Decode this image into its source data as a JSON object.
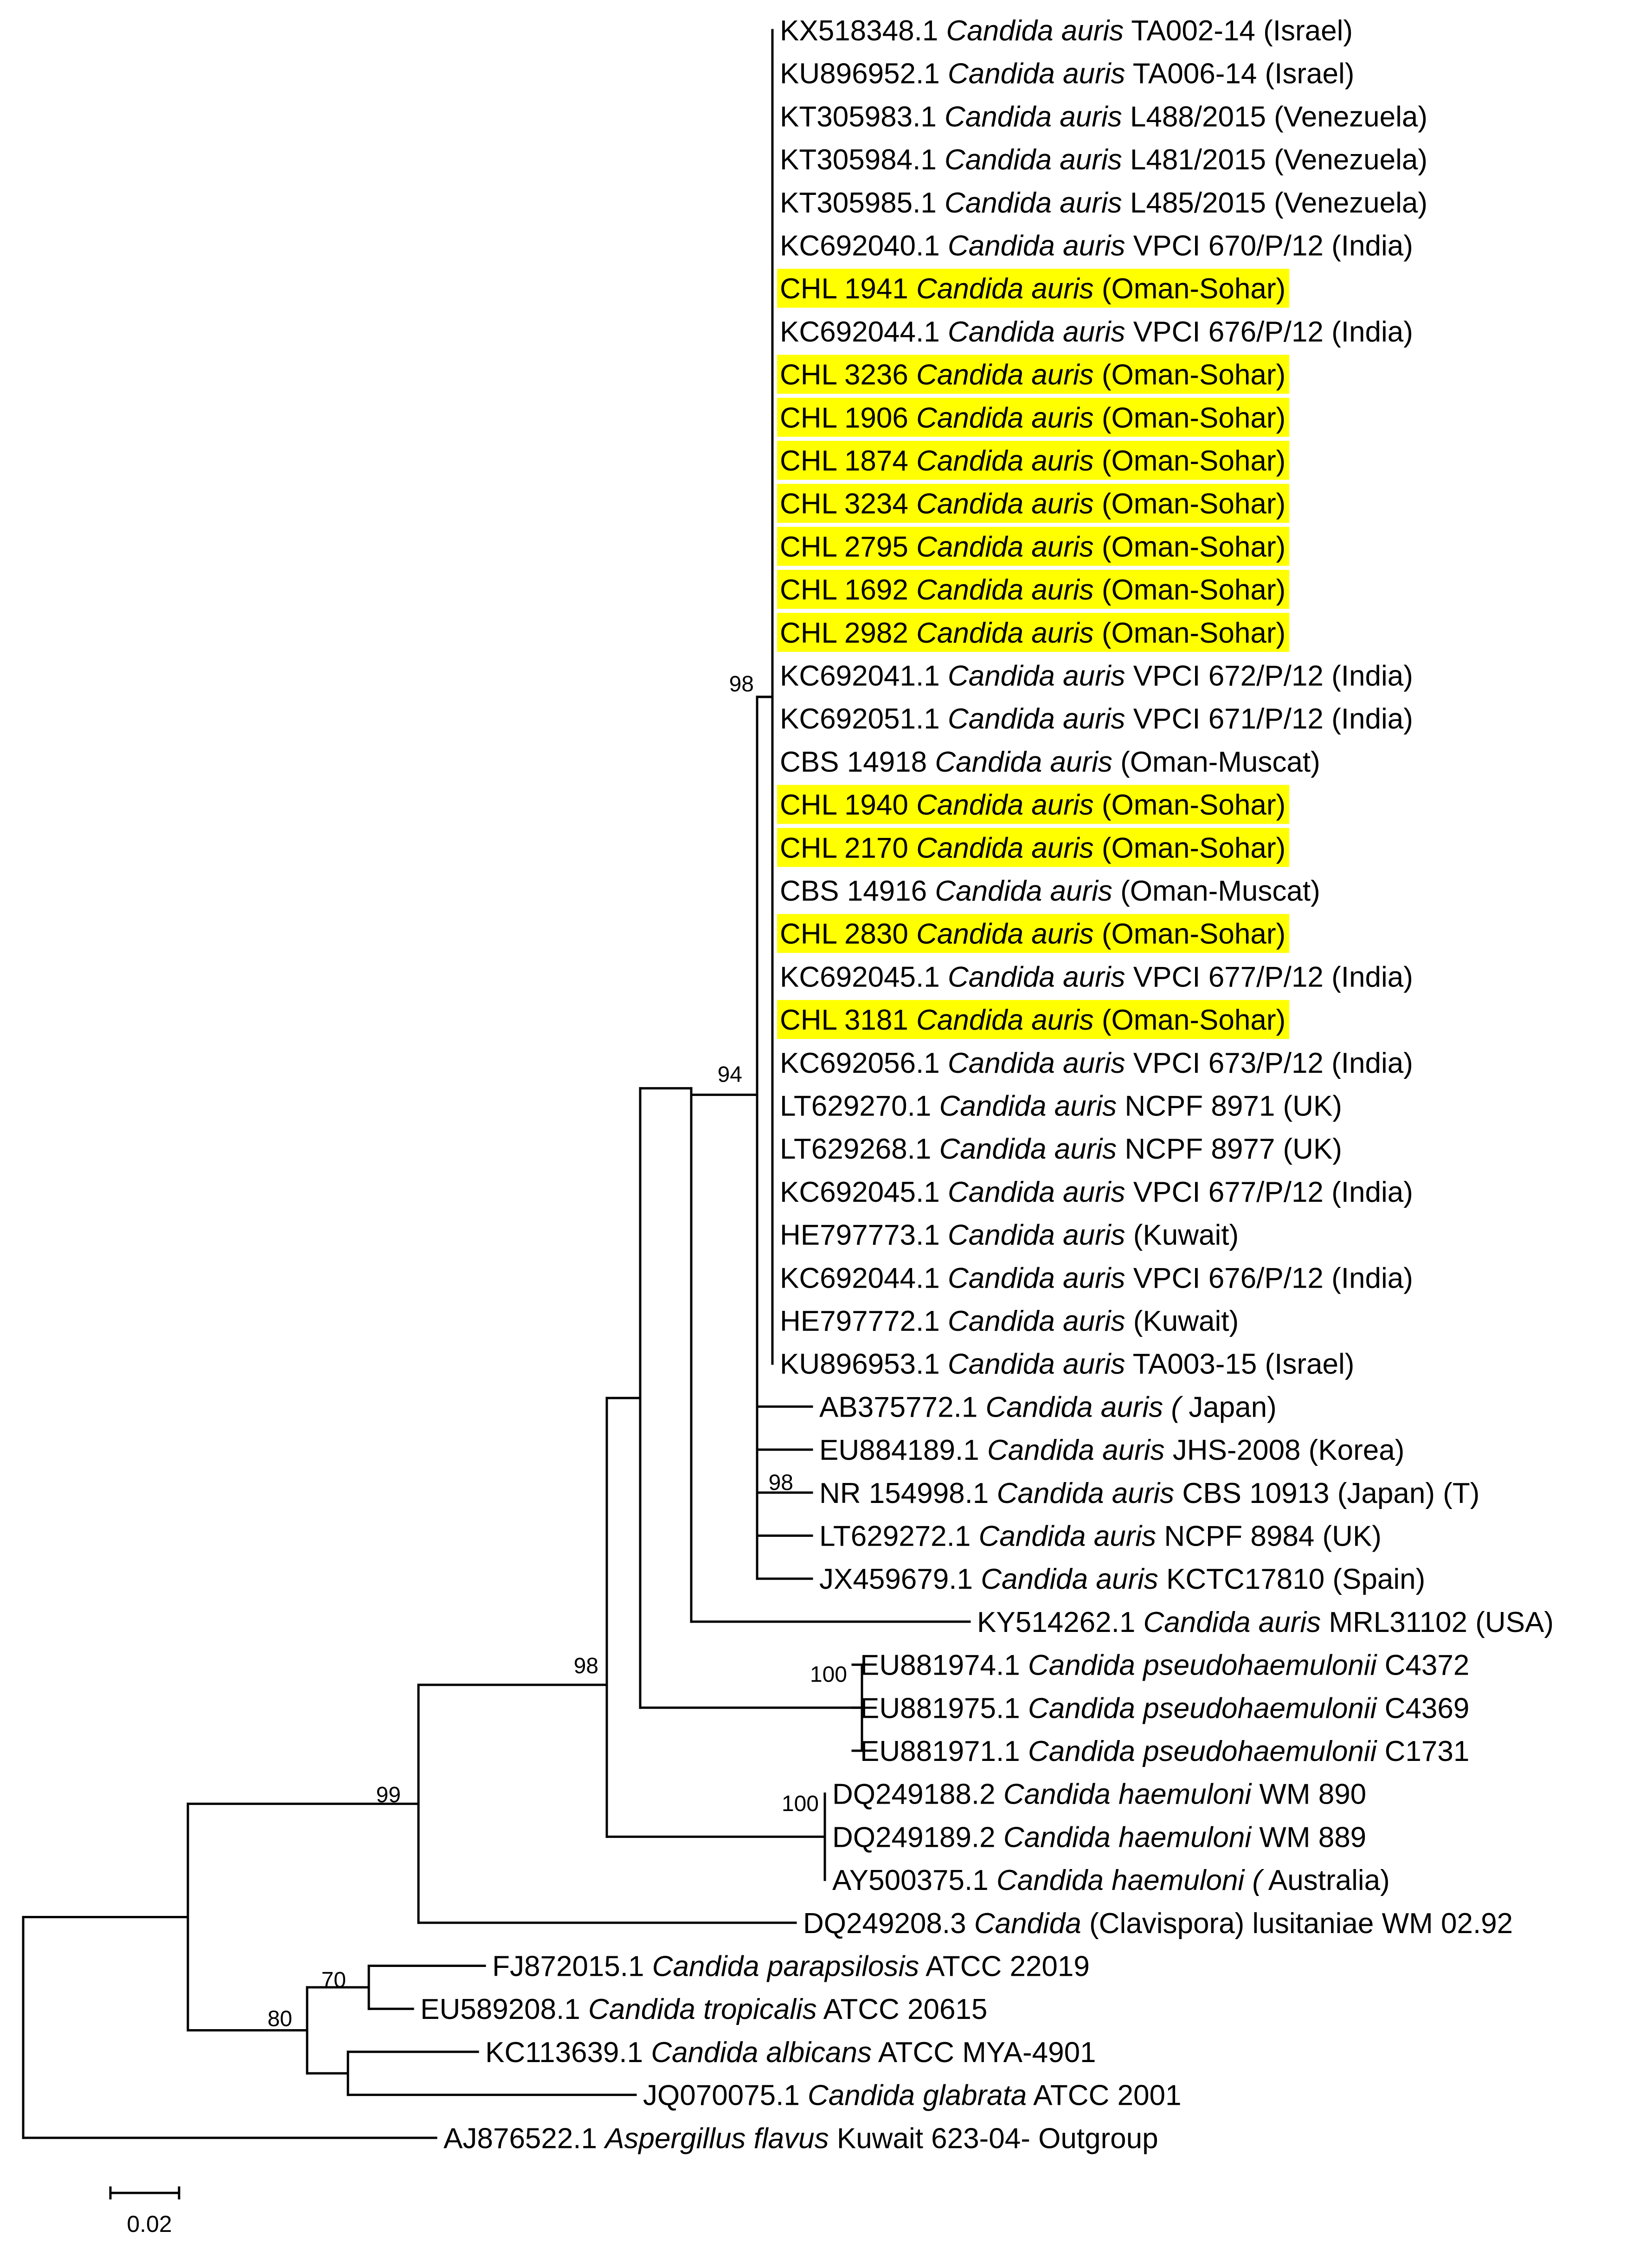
{
  "colors": {
    "highlight": "#ffff00",
    "line": "#000000"
  },
  "leaves": [
    {
      "id": "L0",
      "acc": "KX518348.1",
      "species": "Candida auris",
      "rest": "TA002-14 (Israel)",
      "hl": false
    },
    {
      "id": "L1",
      "acc": "KU896952.1",
      "species": "Candida auris",
      "rest": " TA006-14 (Israel)",
      "hl": false
    },
    {
      "id": "L2",
      "acc": "KT305983.1",
      "species": "Candida auris",
      "rest": "L488/2015 (Venezuela)",
      "hl": false
    },
    {
      "id": "L3",
      "acc": "KT305984.1",
      "species": "Candida auris",
      "rest": "L481/2015 (Venezuela)",
      "hl": false
    },
    {
      "id": "L4",
      "acc": "KT305985.1",
      "species": "Candida auris",
      "rest": "L485/2015 (Venezuela)",
      "hl": false
    },
    {
      "id": "L5",
      "acc": "KC692040.1",
      "species": "Candida auris",
      "rest": "VPCI 670/P/12 (India)",
      "hl": false
    },
    {
      "id": "L6",
      "acc": "CHL 1941",
      "species": "Candida auris",
      "rest": "(Oman-Sohar)",
      "hl": true
    },
    {
      "id": "L7",
      "acc": "KC692044.1",
      "species": "Candida auris",
      "rest": " VPCI 676/P/12 (India)",
      "hl": false
    },
    {
      "id": "L8",
      "acc": "CHL 3236",
      "species": "Candida auris",
      "rest": "(Oman-Sohar)",
      "hl": true
    },
    {
      "id": "L9",
      "acc": "CHL 1906",
      "species": "Candida auris",
      "rest": "(Oman-Sohar)",
      "hl": true
    },
    {
      "id": "L10",
      "acc": "CHL 1874",
      "species": "Candida auris",
      "rest": "(Oman-Sohar)",
      "hl": true
    },
    {
      "id": "L11",
      "acc": "CHL 3234",
      "species": "Candida auris",
      "rest": "(Oman-Sohar)",
      "hl": true
    },
    {
      "id": "L12",
      "acc": "CHL 2795",
      "species": "Candida auris",
      "rest": "(Oman-Sohar)",
      "hl": true
    },
    {
      "id": "L13",
      "acc": "CHL 1692",
      "species": "Candida auris",
      "rest": "(Oman-Sohar)",
      "hl": true
    },
    {
      "id": "L14",
      "acc": "CHL 2982",
      "species": "Candida auris",
      "rest": "(Oman-Sohar)",
      "hl": true
    },
    {
      "id": "L15",
      "acc": "KC692041.1",
      "species": "Candida auris",
      "rest": " VPCI 672/P/12 (India)",
      "hl": false
    },
    {
      "id": "L16",
      "acc": "KC692051.1",
      "species": "Candida auris",
      "rest": " VPCI 671/P/12 (India)",
      "hl": false
    },
    {
      "id": "L17",
      "acc": "CBS 14918",
      "species": "Candida auris",
      "rest": "(Oman-Muscat)",
      "hl": false
    },
    {
      "id": "L18",
      "acc": "CHL 1940",
      "species": "Candida auris",
      "rest": "(Oman-Sohar)",
      "hl": true
    },
    {
      "id": "L19",
      "acc": "CHL 2170",
      "species": "Candida auris",
      "rest": "(Oman-Sohar)",
      "hl": true
    },
    {
      "id": "L20",
      "acc": "CBS 14916",
      "species": "Candida auris",
      "rest": "(Oman-Muscat)",
      "hl": false
    },
    {
      "id": "L21",
      "acc": "CHL 2830",
      "species": "Candida auris",
      "rest": "(Oman-Sohar)",
      "hl": true
    },
    {
      "id": "L22",
      "acc": "KC692045.1",
      "species": "Candida auris",
      "rest": "VPCI 677/P/12 (India)",
      "hl": false
    },
    {
      "id": "L23",
      "acc": "CHL 3181",
      "species": "Candida auris",
      "rest": "(Oman-Sohar)",
      "hl": true
    },
    {
      "id": "L24",
      "acc": "KC692056.1",
      "species": "Candida auris",
      "rest": "VPCI 673/P/12 (India)",
      "hl": false
    },
    {
      "id": "L25",
      "acc": "LT629270.1",
      "species": "Candida auris",
      "rest": "NCPF 8971 (UK)",
      "hl": false
    },
    {
      "id": "L26",
      "acc": "LT629268.1",
      "species": "Candida auris",
      "rest": "NCPF 8977 (UK)",
      "hl": false
    },
    {
      "id": "L27",
      "acc": "KC692045.1",
      "species": "Candida auris",
      "rest": "VPCI 677/P/12 (India)",
      "hl": false
    },
    {
      "id": "L28",
      "acc": "HE797773.1",
      "species": "Candida auris",
      "rest": " (Kuwait)",
      "hl": false
    },
    {
      "id": "L29",
      "acc": "KC692044.1",
      "species": "Candida auris",
      "rest": "VPCI 676/P/12 (India)",
      "hl": false
    },
    {
      "id": "L30",
      "acc": "HE797772.1",
      "species": "Candida auris",
      "rest": "(Kuwait)",
      "hl": false
    },
    {
      "id": "L31",
      "acc": "KU896953.1",
      "species": "Candida auris",
      "rest": "TA003-15 (Israel)",
      "hl": false
    },
    {
      "id": "L32",
      "acc": "AB375772.1",
      "species": "Candida auris (",
      "rest": "Japan)",
      "hl": false
    },
    {
      "id": "L33",
      "acc": "EU884189.1",
      "species": "Candida auris",
      "rest": "JHS-2008 (Korea)",
      "hl": false
    },
    {
      "id": "L34",
      "acc": "NR 154998.1",
      "species": "Candida auris",
      "rest": "CBS 10913 (Japan) (T)",
      "hl": false
    },
    {
      "id": "L35",
      "acc": "LT629272.1",
      "species": "Candida auris",
      "rest": "NCPF 8984 (UK)",
      "hl": false
    },
    {
      "id": "L36",
      "acc": "JX459679.1",
      "species": "Candida auris",
      "rest": "KCTC17810 (Spain)",
      "hl": false
    },
    {
      "id": "L37",
      "acc": "KY514262.1",
      "species": "Candida auris",
      "rest": "MRL31102 (USA)",
      "hl": false
    },
    {
      "id": "L38",
      "acc": "EU881974.1",
      "species": "Candida pseudohaemulonii",
      "rest": "C4372",
      "hl": false
    },
    {
      "id": "L39",
      "acc": "EU881975.1",
      "species": "Candida pseudohaemulonii",
      "rest": "C4369",
      "hl": false
    },
    {
      "id": "L40",
      "acc": "EU881971.1",
      "species": "Candida pseudohaemulonii",
      "rest": "C1731",
      "hl": false
    },
    {
      "id": "L41",
      "acc": "DQ249188.2",
      "species": "Candida haemuloni",
      "rest": "WM 890",
      "hl": false
    },
    {
      "id": "L42",
      "acc": "DQ249189.2",
      "species": "Candida haemuloni",
      "rest": "WM 889",
      "hl": false
    },
    {
      "id": "L43",
      "acc": "AY500375.1",
      "species": "Candida haemuloni (",
      "rest": "Australia)",
      "hl": false
    },
    {
      "id": "L44",
      "acc": "DQ249208.3",
      "species": "Candida",
      "rest": "(Clavispora) lusitaniae WM 02.92",
      "hl": false
    },
    {
      "id": "L45",
      "acc": "FJ872015.1",
      "species": "Candida parapsilosis",
      "rest": "ATCC 22019",
      "hl": false
    },
    {
      "id": "L46",
      "acc": "EU589208.1",
      "species": "Candida tropicalis",
      "rest": "ATCC 20615",
      "hl": false
    },
    {
      "id": "L47",
      "acc": "KC113639.1",
      "species": "Candida albicans",
      "rest": "ATCC MYA-4901",
      "hl": false
    },
    {
      "id": "L48",
      "acc": "JQ070075.1",
      "species": "Candida glabrata",
      "rest": "ATCC 2001",
      "hl": false
    },
    {
      "id": "L49",
      "acc": "AJ876522.1",
      "species": "Aspergillus flavus",
      "rest": "Kuwait 623-04- Outgroup",
      "hl": false
    }
  ],
  "bootstrap": [
    {
      "node": "N98a",
      "label": "98"
    },
    {
      "node": "N94",
      "label": "94"
    },
    {
      "node": "N98b",
      "label": "98"
    },
    {
      "node": "N98c",
      "label": "98"
    },
    {
      "node": "N99",
      "label": "99"
    },
    {
      "node": "N100a",
      "label": "100"
    },
    {
      "node": "N100b",
      "label": "100"
    },
    {
      "node": "N70",
      "label": "70"
    },
    {
      "node": "N80",
      "label": "80"
    }
  ],
  "scale_bar": {
    "label": "0.02"
  }
}
